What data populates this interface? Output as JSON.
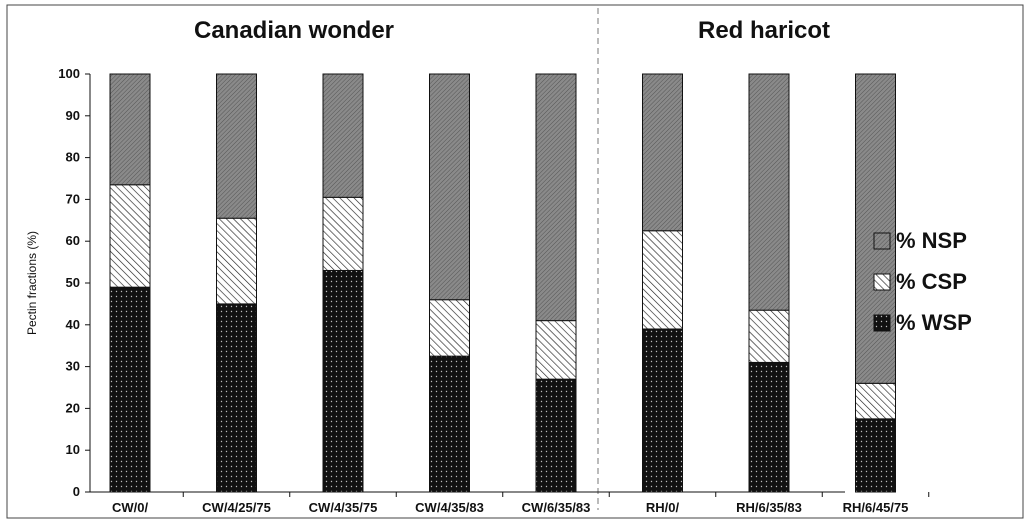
{
  "chart_data": {
    "type": "bar",
    "stacked": true,
    "ylabel": "Pectin fractions (%)",
    "ylim": [
      0,
      100
    ],
    "yticks": [
      0,
      10,
      20,
      30,
      40,
      50,
      60,
      70,
      80,
      90,
      100
    ],
    "groups": [
      {
        "title": "Canadian wonder",
        "categories": [
          "CW/0/",
          "CW/4/25/75",
          "CW/4/35/75",
          "CW/4/35/83",
          "CW/6/35/83"
        ]
      },
      {
        "title": "Red haricot",
        "categories": [
          "RH/0/",
          "RH/6/35/83",
          "RH/6/45/75"
        ]
      }
    ],
    "categories": [
      "CW/0/",
      "CW/4/25/75",
      "CW/4/35/75",
      "CW/4/35/83",
      "CW/6/35/83",
      "RH/0/",
      "RH/6/35/83",
      "RH/6/45/75"
    ],
    "series": [
      {
        "name": "% WSP",
        "pattern": "dots-black",
        "values": [
          49,
          45,
          53,
          32.5,
          27,
          39,
          31,
          17.5
        ]
      },
      {
        "name": "% CSP",
        "pattern": "hatch-white",
        "values": [
          24.5,
          20.5,
          17.5,
          13.5,
          14,
          23.5,
          12.5,
          8.5
        ]
      },
      {
        "name": "% NSP",
        "pattern": "hatch-grey",
        "values": [
          26.5,
          34.5,
          29.5,
          54,
          59,
          37.5,
          56.5,
          74
        ]
      }
    ],
    "legend_order": [
      "% NSP",
      "% CSP",
      "% WSP"
    ],
    "legend_position": "right",
    "grid": false
  }
}
